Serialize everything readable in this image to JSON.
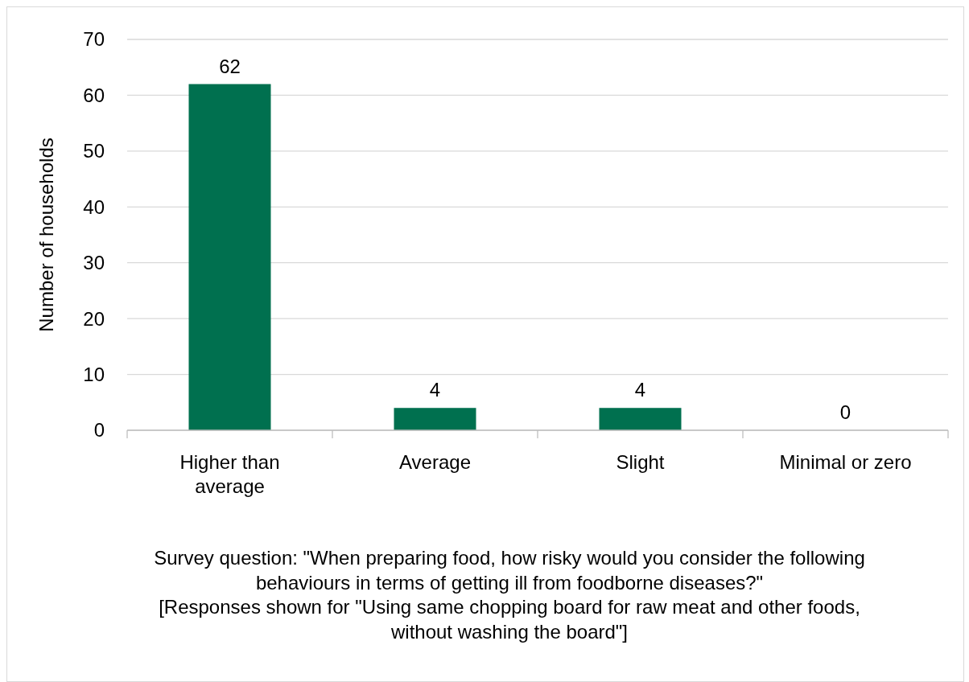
{
  "chart_data": {
    "type": "bar",
    "ylabel": "Number of households",
    "categories": [
      "Higher than average",
      "Average",
      "Slight",
      "Minimal or zero"
    ],
    "values": [
      62,
      4,
      4,
      0
    ],
    "color": "#00704f",
    "ylim": [
      0,
      70
    ],
    "yticks": [
      0,
      10,
      20,
      30,
      40,
      50,
      60,
      70
    ],
    "grid": "y",
    "data_labels": true,
    "annotations": [
      "Survey question: \"When preparing food, how risky would you consider the following behaviours in terms of getting ill from foodborne diseases?\"",
      "[Responses shown for \"Using same chopping board for raw meat and other foods, without washing the board\"]"
    ]
  }
}
